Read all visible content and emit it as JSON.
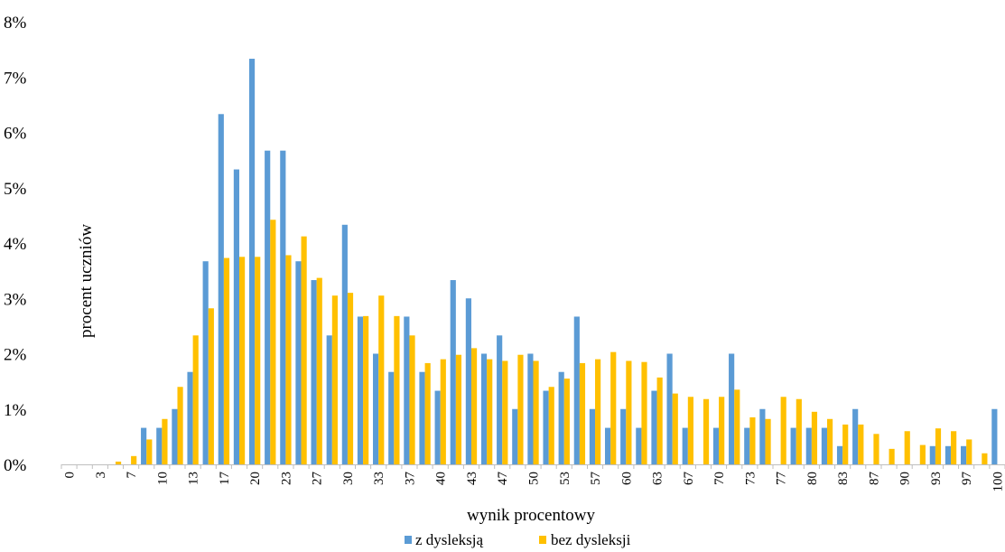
{
  "chart_data": {
    "type": "bar",
    "title": "",
    "xlabel": "wynik procentowy",
    "ylabel": "procent uczniów",
    "ylim": [
      0,
      8
    ],
    "yticks": [
      "0%",
      "1%",
      "2%",
      "3%",
      "4%",
      "5%",
      "6%",
      "7%",
      "8%"
    ],
    "x_tick_labels": [
      "0",
      "3",
      "7",
      "10",
      "13",
      "17",
      "20",
      "23",
      "27",
      "30",
      "33",
      "37",
      "40",
      "43",
      "47",
      "50",
      "53",
      "57",
      "60",
      "63",
      "67",
      "70",
      "73",
      "77",
      "80",
      "83",
      "87",
      "90",
      "93",
      "97",
      "100"
    ],
    "categories": [
      "0",
      "2",
      "3",
      "5",
      "7",
      "8",
      "10",
      "12",
      "13",
      "15",
      "17",
      "18",
      "20",
      "22",
      "23",
      "25",
      "27",
      "28",
      "30",
      "32",
      "33",
      "35",
      "37",
      "38",
      "40",
      "42",
      "43",
      "45",
      "47",
      "48",
      "50",
      "52",
      "53",
      "55",
      "57",
      "58",
      "60",
      "62",
      "63",
      "65",
      "67",
      "68",
      "70",
      "72",
      "73",
      "75",
      "77",
      "78",
      "80",
      "82",
      "83",
      "85",
      "87",
      "88",
      "90",
      "92",
      "93",
      "95",
      "97",
      "98",
      "100"
    ],
    "series": [
      {
        "name": "z dysleksją",
        "color": "#5B9BD5",
        "values": [
          0,
          0,
          0,
          0,
          0,
          0.66,
          0.66,
          1.0,
          1.67,
          3.67,
          6.33,
          5.33,
          7.33,
          5.67,
          5.67,
          3.67,
          3.33,
          2.33,
          4.33,
          2.67,
          2.0,
          1.67,
          2.67,
          1.67,
          1.33,
          3.33,
          3.0,
          2.0,
          2.33,
          1.0,
          2.0,
          1.33,
          1.67,
          2.67,
          1.0,
          0.66,
          1.0,
          0.66,
          1.33,
          2.0,
          0.66,
          0,
          0.66,
          2.0,
          0.66,
          1.0,
          0,
          0.66,
          0.66,
          0.66,
          0.33,
          1.0,
          0,
          0,
          0,
          0,
          0.33,
          0.33,
          0.33,
          0,
          1.0
        ]
      },
      {
        "name": "bez dysleksji",
        "color": "#FFC000",
        "values": [
          0,
          0,
          0,
          0.05,
          0.15,
          0.45,
          0.82,
          1.4,
          2.33,
          2.82,
          3.73,
          3.75,
          3.75,
          4.42,
          3.78,
          4.12,
          3.37,
          3.05,
          3.1,
          2.68,
          3.05,
          2.68,
          2.33,
          1.83,
          1.9,
          1.98,
          2.1,
          1.9,
          1.87,
          1.98,
          1.87,
          1.4,
          1.55,
          1.83,
          1.9,
          2.03,
          1.87,
          1.85,
          1.57,
          1.28,
          1.22,
          1.18,
          1.22,
          1.35,
          0.85,
          0.82,
          1.22,
          1.18,
          0.95,
          0.82,
          0.72,
          0.72,
          0.55,
          0.28,
          0.6,
          0.35,
          0.65,
          0.6,
          0.45,
          0.2,
          0
        ]
      }
    ],
    "legend_position": "bottom",
    "grid": false
  }
}
